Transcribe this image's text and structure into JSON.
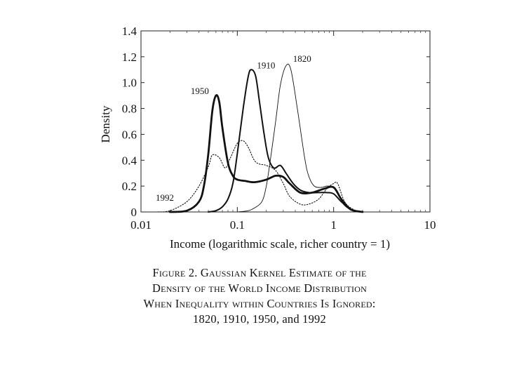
{
  "chart_data": {
    "type": "line",
    "xlabel": "Income (logarithmic scale, richer country = 1)",
    "ylabel": "Density",
    "x_scale": "log",
    "xlim": [
      0.01,
      10
    ],
    "ylim": [
      0,
      1.4
    ],
    "x_ticks": [
      "0.01",
      "0.1",
      "1",
      "10"
    ],
    "y_ticks": [
      "0",
      "0.2",
      "0.4",
      "0.6",
      "0.8",
      "1.0",
      "1.2",
      "1.4"
    ],
    "grid": false,
    "series": [
      {
        "name": "1820",
        "style": "thin",
        "x": [
          0.1,
          0.13,
          0.15,
          0.18,
          0.2,
          0.22,
          0.25,
          0.28,
          0.32,
          0.36,
          0.42,
          0.5,
          0.55,
          0.63,
          0.75,
          0.85,
          1.0,
          1.15,
          1.3,
          1.6,
          2.0
        ],
        "y": [
          0,
          0.01,
          0.03,
          0.08,
          0.2,
          0.4,
          0.7,
          0.98,
          1.13,
          1.1,
          0.8,
          0.42,
          0.28,
          0.2,
          0.19,
          0.2,
          0.19,
          0.12,
          0.05,
          0.01,
          0
        ]
      },
      {
        "name": "1910",
        "style": "medium",
        "x": [
          0.05,
          0.06,
          0.07,
          0.08,
          0.09,
          0.1,
          0.115,
          0.13,
          0.14,
          0.155,
          0.17,
          0.19,
          0.21,
          0.24,
          0.28,
          0.32,
          0.38,
          0.45,
          0.55,
          0.7,
          0.85,
          1.0,
          1.2,
          1.5,
          2.0
        ],
        "y": [
          0,
          0.01,
          0.04,
          0.1,
          0.22,
          0.45,
          0.8,
          1.05,
          1.1,
          1.05,
          0.85,
          0.6,
          0.42,
          0.34,
          0.36,
          0.3,
          0.22,
          0.17,
          0.15,
          0.15,
          0.15,
          0.14,
          0.08,
          0.02,
          0
        ]
      },
      {
        "name": "1950",
        "style": "thick",
        "x": [
          0.02,
          0.03,
          0.04,
          0.045,
          0.05,
          0.055,
          0.06,
          0.065,
          0.07,
          0.08,
          0.09,
          0.1,
          0.12,
          0.15,
          0.2,
          0.25,
          0.3,
          0.35,
          0.45,
          0.6,
          0.8,
          1.0,
          1.2,
          1.5,
          2.0
        ],
        "y": [
          0,
          0.01,
          0.08,
          0.2,
          0.45,
          0.78,
          0.9,
          0.85,
          0.65,
          0.38,
          0.28,
          0.25,
          0.24,
          0.23,
          0.25,
          0.28,
          0.27,
          0.22,
          0.15,
          0.15,
          0.18,
          0.19,
          0.1,
          0.02,
          0
        ]
      },
      {
        "name": "1992",
        "style": "dotted",
        "x": [
          0.015,
          0.02,
          0.03,
          0.04,
          0.05,
          0.055,
          0.065,
          0.075,
          0.085,
          0.1,
          0.115,
          0.13,
          0.15,
          0.17,
          0.2,
          0.25,
          0.3,
          0.35,
          0.45,
          0.55,
          0.7,
          0.85,
          1.0,
          1.1,
          1.3,
          1.6,
          2.0
        ],
        "y": [
          0,
          0.01,
          0.08,
          0.2,
          0.35,
          0.44,
          0.42,
          0.34,
          0.42,
          0.53,
          0.55,
          0.5,
          0.4,
          0.37,
          0.36,
          0.32,
          0.22,
          0.12,
          0.06,
          0.06,
          0.1,
          0.18,
          0.22,
          0.22,
          0.08,
          0.02,
          0
        ]
      }
    ]
  },
  "caption": {
    "line1": "Figure 2. Gaussian Kernel Estimate of the",
    "line2": "Density of the World Income Distribution",
    "line3": "When Inequality within Countries Is Ignored:",
    "line4": "1820, 1910, 1950, and 1992"
  }
}
